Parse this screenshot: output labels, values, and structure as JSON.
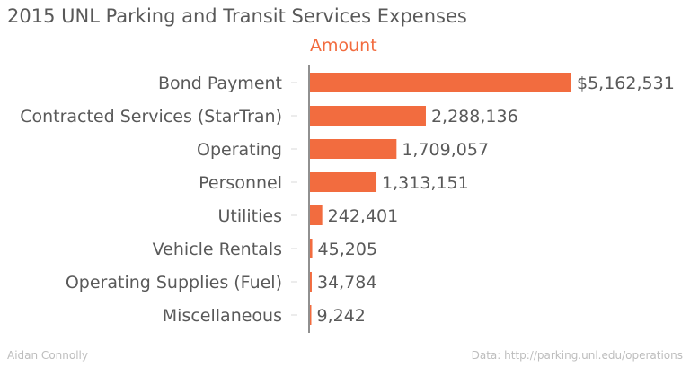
{
  "chart_data": {
    "type": "bar",
    "orientation": "horizontal",
    "title": "2015 UNL Parking and Transit Services Expenses",
    "series": [
      {
        "name": "Amount",
        "color": "#f26c3f",
        "values": [
          5162531,
          2288136,
          1709057,
          1313151,
          242401,
          45205,
          34784,
          9242
        ],
        "labels": [
          "$5,162,531",
          "2,288,136",
          "1,709,057",
          "1,313,151",
          "242,401",
          "45,205",
          "34,784",
          "9,242"
        ]
      }
    ],
    "categories": [
      "Bond Payment",
      "Contracted Services (StarTran)",
      "Operating",
      "Personnel",
      "Utilities",
      "Vehicle Rentals",
      "Operating Supplies (Fuel)",
      "Miscellaneous"
    ],
    "xlim": [
      0,
      5162531
    ],
    "grid": false,
    "legend": "none"
  },
  "footer": {
    "author": "Aidan Connolly",
    "source": "Data: http://parking.unl.edu/operations"
  }
}
